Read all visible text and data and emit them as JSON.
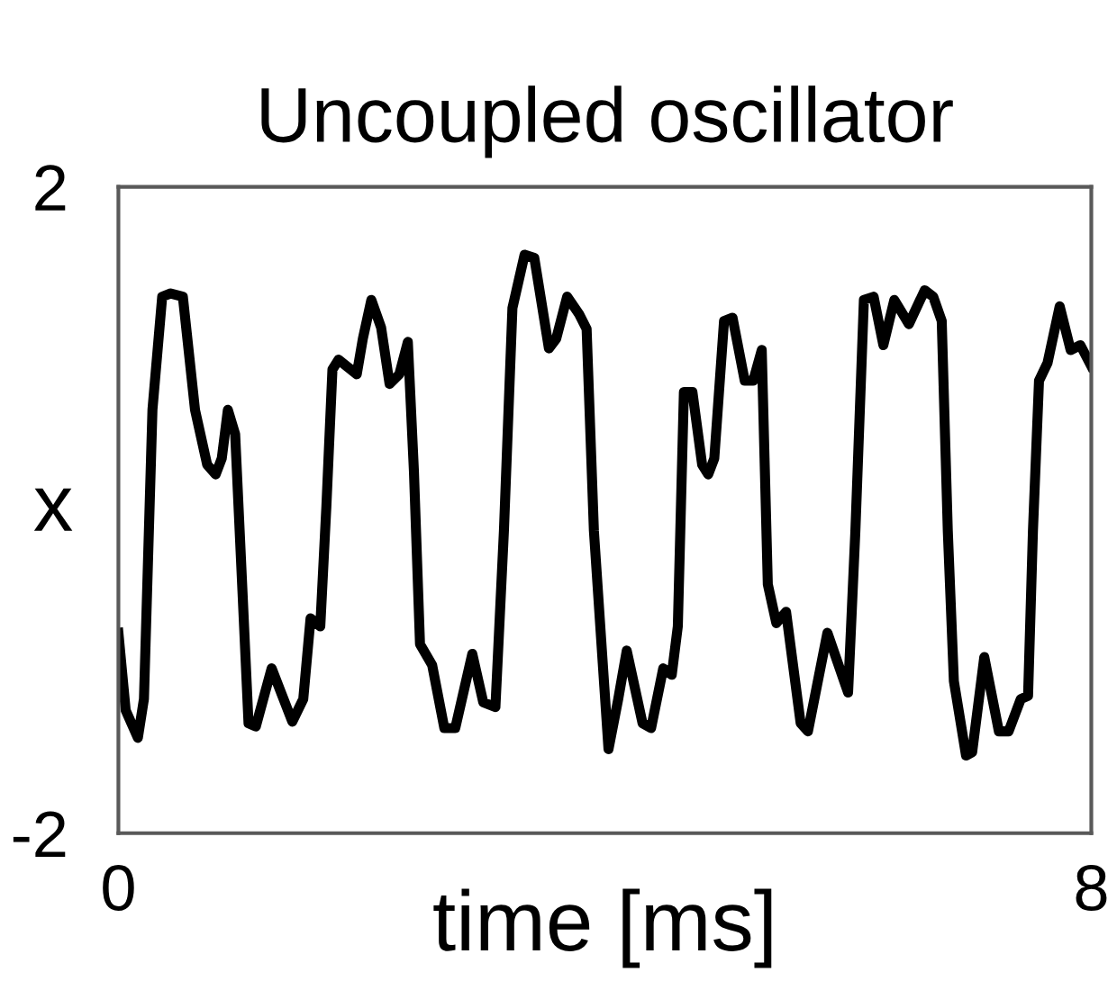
{
  "chart_data": {
    "type": "line",
    "title": "Uncoupled oscillator",
    "xlabel": "time [ms]",
    "ylabel": "x",
    "xlim": [
      0,
      8
    ],
    "ylim": [
      -2,
      2
    ],
    "xticks": [
      0,
      8
    ],
    "yticks": [
      2,
      -2
    ],
    "legend": false,
    "marker": "none",
    "line_style": "solid",
    "series": [
      {
        "color": "#000000",
        "x": [
          0,
          0.06,
          0.16,
          0.21,
          0.28,
          0.36,
          0.43,
          0.53,
          0.63,
          0.73,
          0.8,
          0.85,
          0.9,
          0.96,
          1.02,
          1.07,
          1.13,
          1.26,
          1.43,
          1.52,
          1.58,
          1.66,
          1.71,
          1.76,
          1.81,
          1.96,
          2.01,
          2.08,
          2.16,
          2.23,
          2.31,
          2.38,
          2.43,
          2.48,
          2.58,
          2.68,
          2.77,
          2.91,
          3.0,
          3.1,
          3.17,
          3.24,
          3.34,
          3.42,
          3.54,
          3.6,
          3.69,
          3.79,
          3.85,
          3.91,
          4.03,
          4.11,
          4.18,
          4.31,
          4.38,
          4.48,
          4.55,
          4.6,
          4.65,
          4.72,
          4.8,
          4.85,
          4.9,
          4.98,
          5.05,
          5.15,
          5.22,
          5.29,
          5.34,
          5.41,
          5.49,
          5.61,
          5.67,
          5.83,
          6.0,
          6.06,
          6.13,
          6.21,
          6.29,
          6.38,
          6.5,
          6.63,
          6.7,
          6.77,
          6.82,
          6.87,
          6.97,
          7.02,
          7.12,
          7.24,
          7.32,
          7.42,
          7.48,
          7.52,
          7.57,
          7.64,
          7.74,
          7.83,
          7.91,
          8.0
        ],
        "values": [
          -0.76,
          -1.24,
          -1.41,
          -1.17,
          0.62,
          1.32,
          1.34,
          1.32,
          0.62,
          0.28,
          0.22,
          0.32,
          0.62,
          0.47,
          -0.5,
          -1.32,
          -1.34,
          -0.98,
          -1.31,
          -1.17,
          -0.67,
          -0.72,
          0.02,
          0.87,
          0.93,
          0.84,
          1.06,
          1.3,
          1.13,
          0.78,
          0.84,
          1.04,
          0.24,
          -0.83,
          -0.96,
          -1.35,
          -1.35,
          -0.89,
          -1.19,
          -1.22,
          -0.13,
          1.25,
          1.58,
          1.56,
          1.0,
          1.06,
          1.32,
          1.21,
          1.12,
          -0.13,
          -1.48,
          -1.17,
          -0.87,
          -1.32,
          -1.35,
          -0.98,
          -1.02,
          -0.72,
          0.73,
          0.73,
          0.28,
          0.22,
          0.32,
          1.17,
          1.19,
          0.8,
          0.8,
          0.99,
          -0.46,
          -0.7,
          -0.63,
          -1.32,
          -1.37,
          -0.76,
          -1.13,
          -0.13,
          1.3,
          1.32,
          1.02,
          1.3,
          1.15,
          1.36,
          1.32,
          1.17,
          -0.13,
          -1.06,
          -1.52,
          -1.5,
          -0.91,
          -1.37,
          -1.37,
          -1.17,
          -1.15,
          -0.13,
          0.8,
          0.91,
          1.26,
          0.99,
          1.02,
          0.89
        ]
      }
    ]
  }
}
